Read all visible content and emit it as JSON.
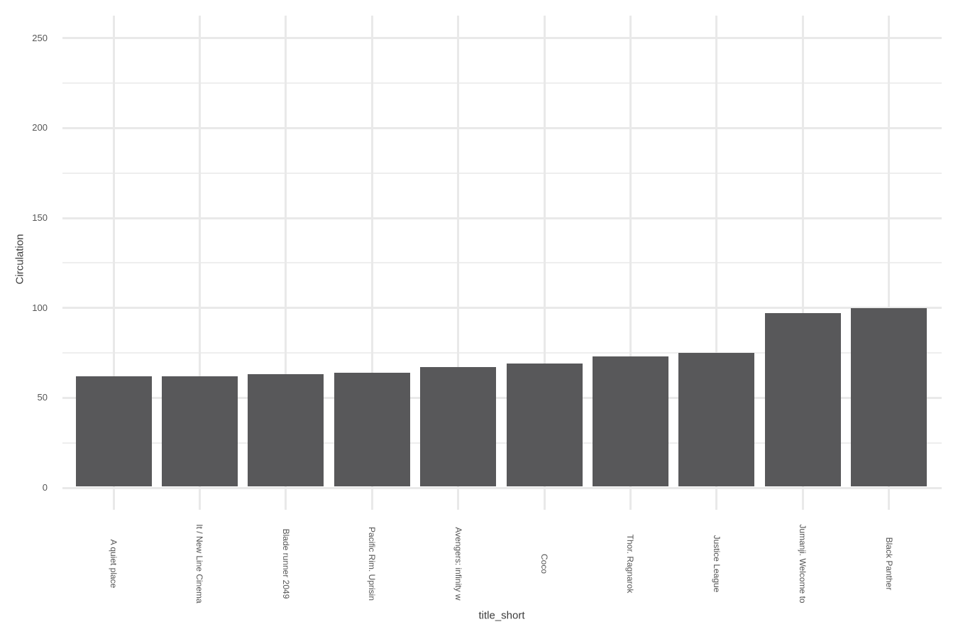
{
  "chart_data": {
    "type": "bar",
    "title": "",
    "xlabel": "title_short",
    "ylabel": "Circulation",
    "categories": [
      "A quiet place",
      "It / New Line Cinema",
      "Blade runner 2049",
      "Pacific Rim. Uprisin",
      "Avengers: infinity w",
      "Coco",
      "Thor. Ragnarok",
      "Justice League",
      "Jumanji. Welcome to",
      "Black Panther"
    ],
    "values": [
      62,
      62,
      63,
      64,
      67,
      69,
      73,
      75,
      97,
      100
    ],
    "ylim": [
      0,
      262
    ],
    "yticks_major": [
      0,
      50,
      100,
      150,
      200,
      250
    ],
    "yticks_minor": [
      25,
      75,
      125,
      175,
      225
    ],
    "grid": true,
    "legend": "none",
    "colors": {
      "bar": "#58585a",
      "grid_major": "#e9e9e9",
      "grid_minor": "#eeeeee",
      "tick_mark": "#e9e9e9",
      "tick_label": "#555555",
      "axis_title": "#3b3b3b",
      "background": "#ffffff"
    }
  }
}
